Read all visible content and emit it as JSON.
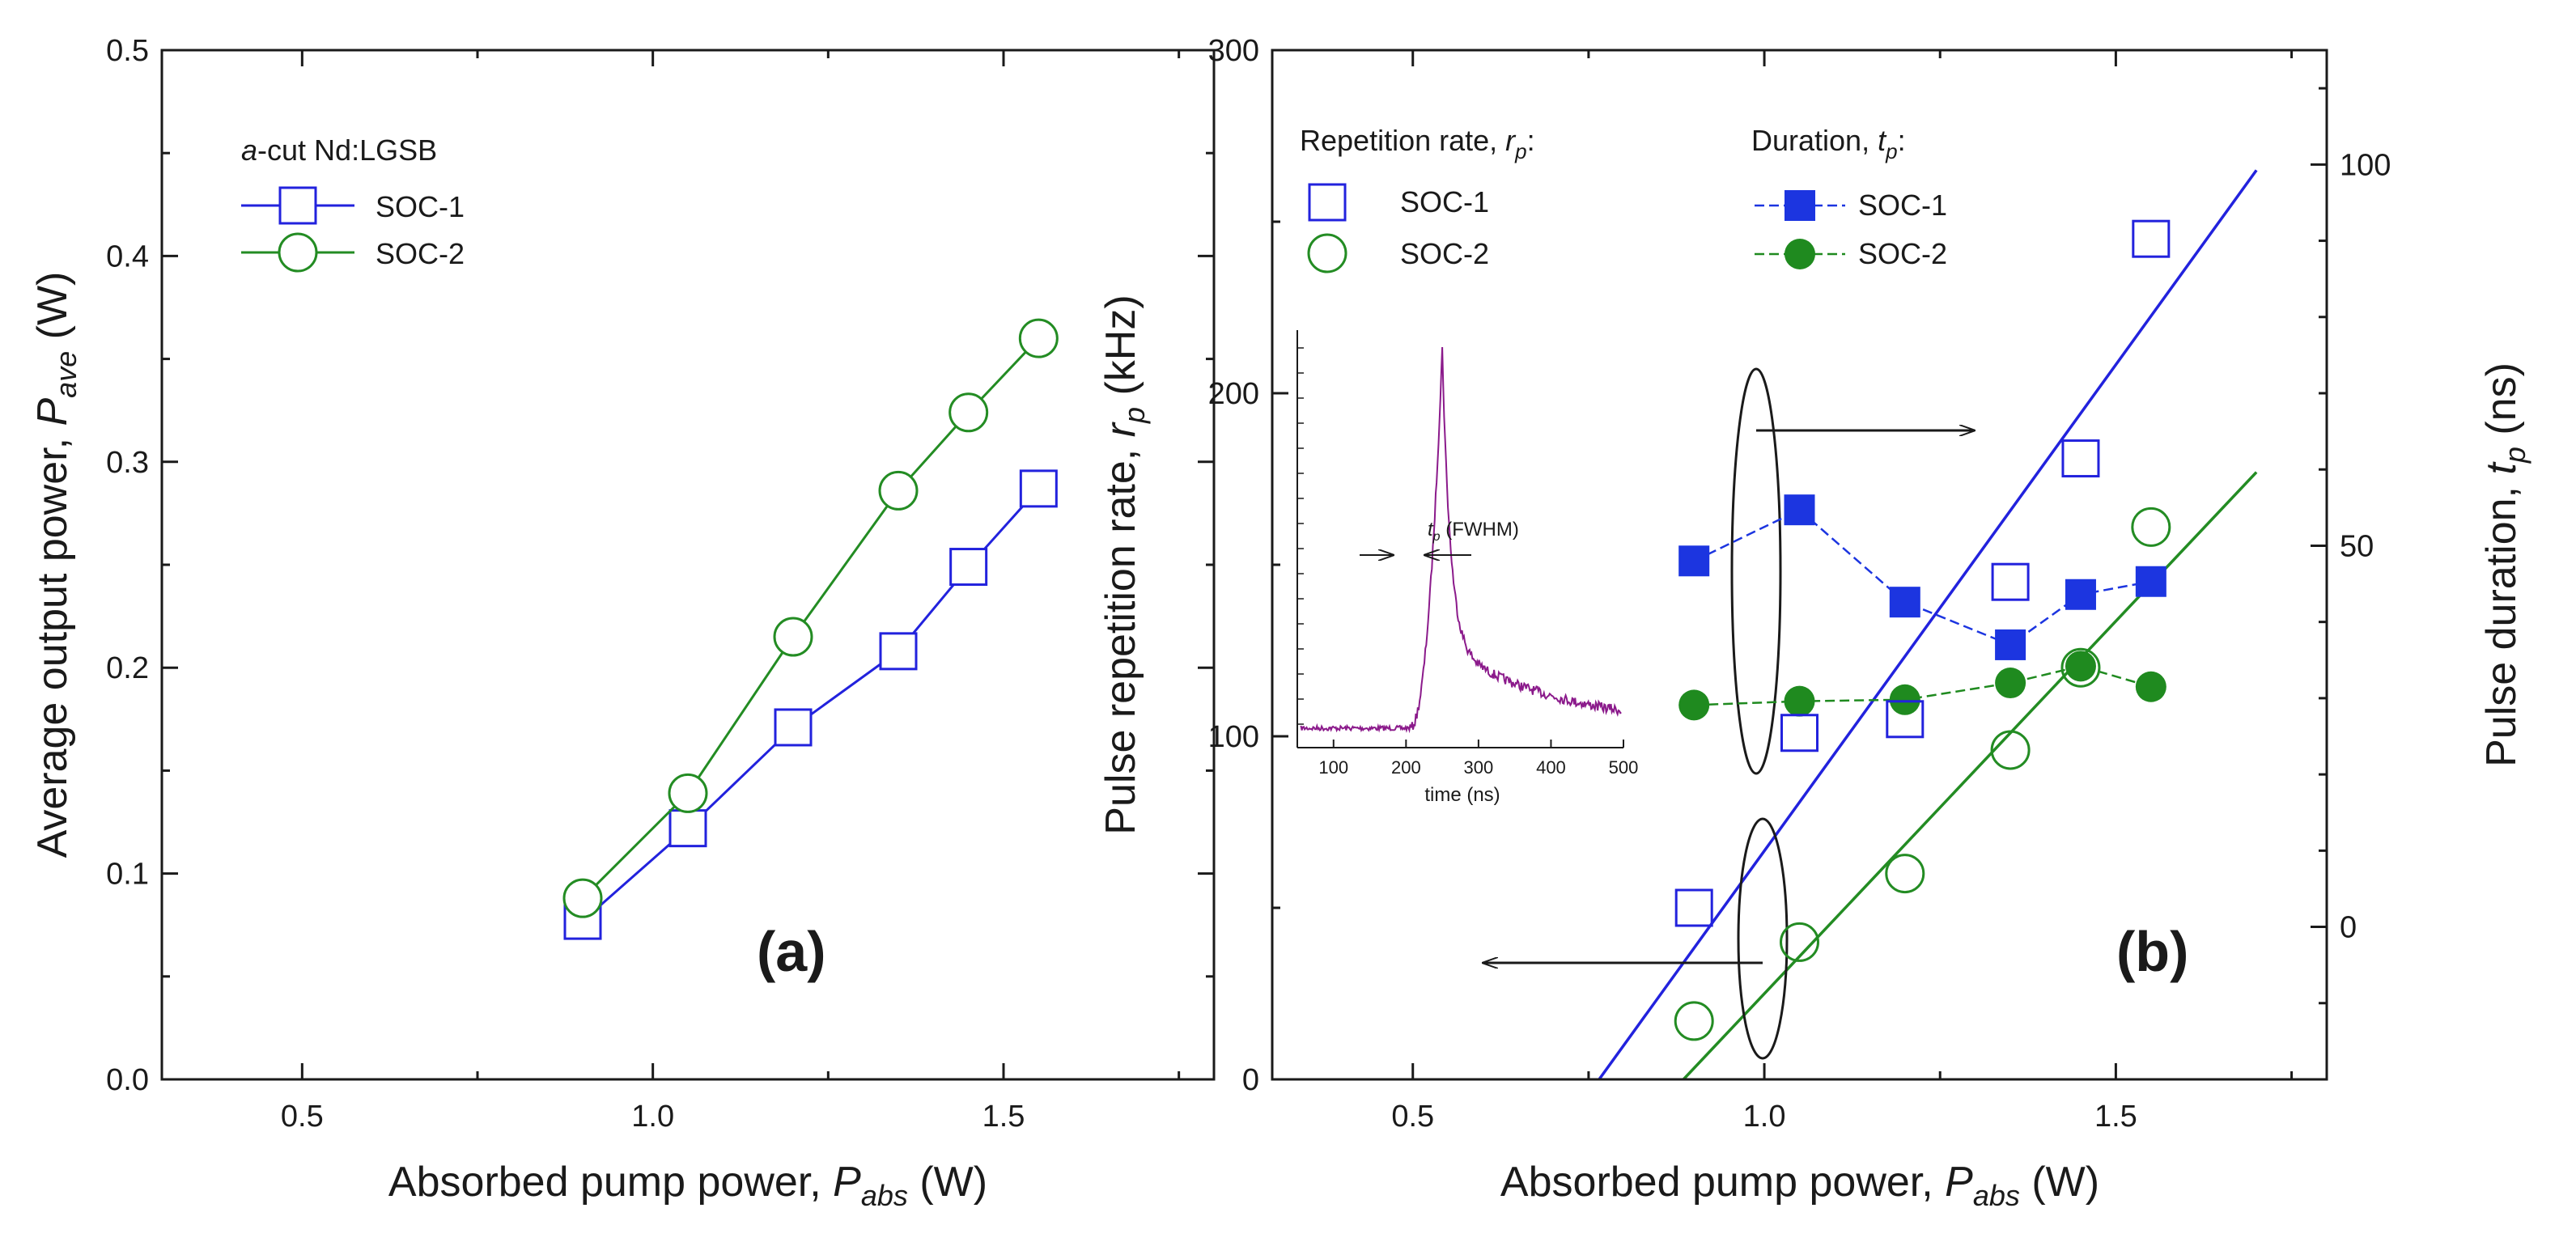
{
  "chart_data": [
    {
      "panel": "a",
      "type": "line",
      "panel_label": "(a)",
      "xlabel": {
        "main": "Absorbed pump power, ",
        "var": "P",
        "sub": "abs",
        "unit": " (W)"
      },
      "ylabel": {
        "main": "Average output power, ",
        "var": "P",
        "sub": "ave",
        "unit": " (W)"
      },
      "xlim": [
        0.3,
        1.8
      ],
      "ylim": [
        0.0,
        0.5
      ],
      "xticks": [
        "0.5",
        "1.0",
        "1.5"
      ],
      "xtick_values": [
        0.5,
        1.0,
        1.5
      ],
      "yticks": [
        "0.0",
        "0.1",
        "0.2",
        "0.3",
        "0.4",
        "0.5"
      ],
      "ytick_values": [
        0.0,
        0.1,
        0.2,
        0.3,
        0.4,
        0.5
      ],
      "legend": {
        "title_italic": "a",
        "title_rest": "-cut Nd:LGSB",
        "position": "top-left"
      },
      "x": [
        0.9,
        1.05,
        1.2,
        1.35,
        1.45,
        1.55
      ],
      "series": [
        {
          "name": "SOC-1",
          "color": "#2222dd",
          "marker": "open-square",
          "values": [
            0.077,
            0.122,
            0.171,
            0.208,
            0.249,
            0.287
          ]
        },
        {
          "name": "SOC-2",
          "color": "#238c23",
          "marker": "open-circle",
          "values": [
            0.088,
            0.139,
            0.215,
            0.286,
            0.324,
            0.36
          ]
        }
      ]
    },
    {
      "panel": "b",
      "type": "scatter",
      "panel_label": "(b)",
      "xlabel": {
        "main": "Absorbed pump power, ",
        "var": "P",
        "sub": "abs",
        "unit": " (W)"
      },
      "ylabel_left": {
        "main": "Pulse repetition rate, ",
        "var": "r",
        "sub": "p",
        "unit": " (kHz)"
      },
      "ylabel_right": {
        "main": "Pulse duration, ",
        "var": "t",
        "sub": "p",
        "unit": " (ns)"
      },
      "xlim": [
        0.3,
        1.8
      ],
      "ylim_left": [
        0,
        300
      ],
      "ylim_right": [
        -20,
        115
      ],
      "xticks": [
        "0.5",
        "1.0",
        "1.5"
      ],
      "xtick_values": [
        0.5,
        1.0,
        1.5
      ],
      "yticks_left": [
        "0",
        "100",
        "200",
        "300"
      ],
      "ytick_left_values": [
        0,
        100,
        200,
        300
      ],
      "yticks_right": [
        "0",
        "50",
        "100"
      ],
      "ytick_right_values": [
        0,
        50,
        100
      ],
      "legend_rep": {
        "title": "Repetition rate, ",
        "var": "r",
        "sub": "p",
        "suffix": ":",
        "position": "top-left"
      },
      "legend_dur": {
        "title": "Duration, ",
        "var": "t",
        "sub": "p",
        "suffix": ":",
        "position": "top-center"
      },
      "x": [
        0.9,
        1.05,
        1.2,
        1.35,
        1.45,
        1.55
      ],
      "rep_series": [
        {
          "name": "SOC-1",
          "color": "#2222dd",
          "marker": "open-square",
          "values": [
            50,
            101,
            105,
            145,
            181,
            245
          ]
        },
        {
          "name": "SOC-2",
          "color": "#238c23",
          "marker": "open-circle",
          "values": [
            17,
            40,
            60,
            96,
            120,
            161
          ]
        }
      ],
      "fit_lines": [
        {
          "name": "SOC-1 fit",
          "color": "#2222dd",
          "x": [
            0.765,
            1.7
          ],
          "y": [
            0,
            265
          ]
        },
        {
          "name": "SOC-2 fit",
          "color": "#238c23",
          "x": [
            0.885,
            1.7
          ],
          "y": [
            0,
            177
          ]
        }
      ],
      "dur_series": [
        {
          "name": "SOC-1",
          "color": "#1c35e0",
          "marker": "filled-square",
          "values": [
            48.0,
            54.7,
            42.6,
            37.0,
            43.6,
            45.3
          ]
        },
        {
          "name": "SOC-2",
          "color": "#1f8a1f",
          "marker": "filled-circle",
          "values": [
            29.1,
            29.6,
            29.8,
            32.0,
            34.2,
            31.5
          ]
        }
      ],
      "inset": {
        "type": "line",
        "xlabel": "time (ns)",
        "xlim": [
          50,
          500
        ],
        "xticks": [
          "100",
          "200",
          "300",
          "400",
          "500"
        ],
        "xtick_values": [
          100,
          200,
          300,
          400,
          500
        ],
        "annotation_var": "t",
        "annotation_sub": "p",
        "annotation_text": " (FWHM)",
        "color": "#8b1a8b"
      }
    }
  ]
}
